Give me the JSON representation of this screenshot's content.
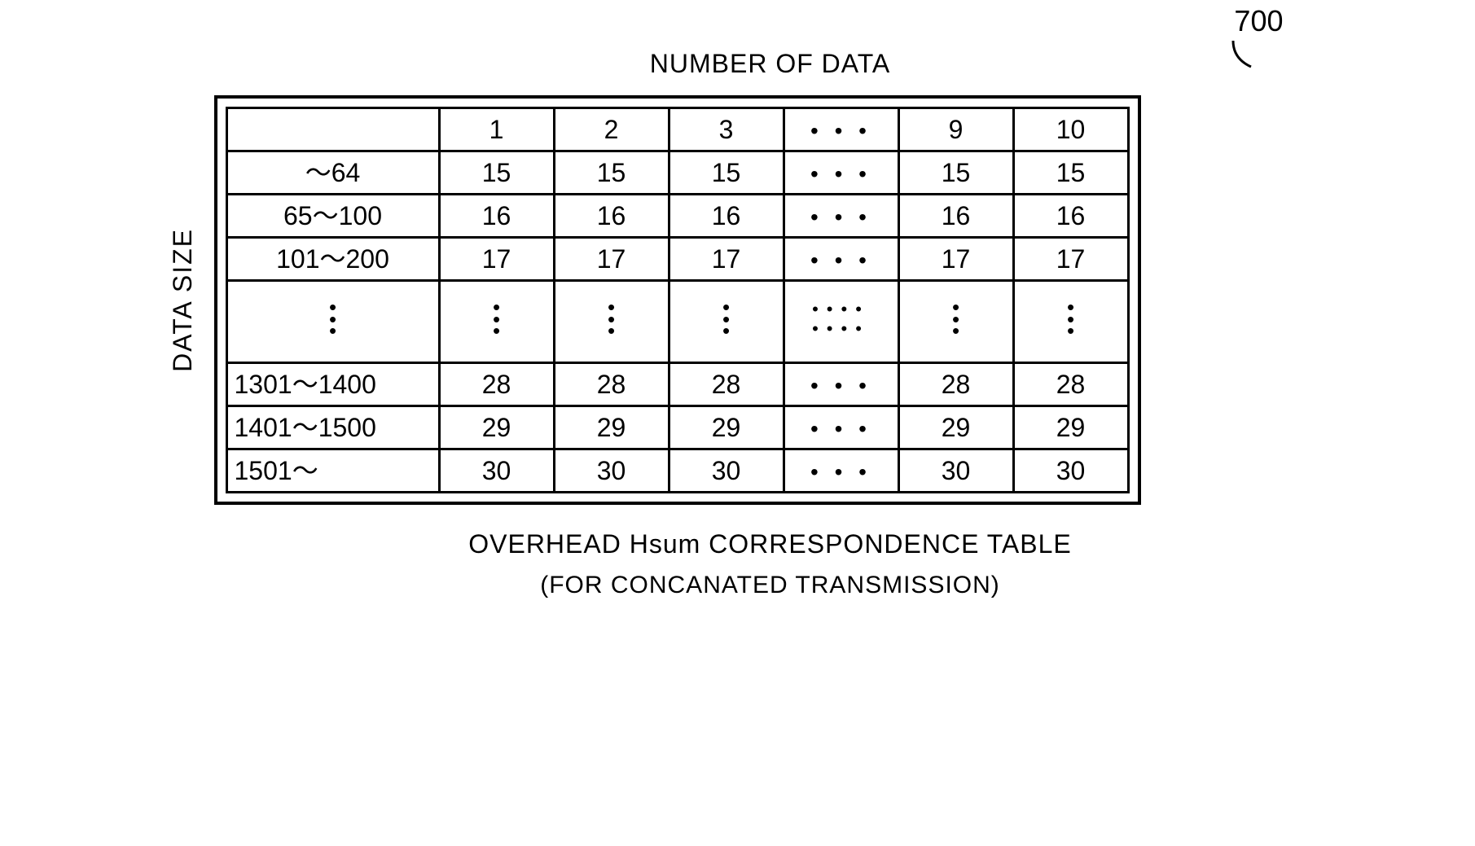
{
  "labels": {
    "top": "NUMBER OF DATA",
    "side": "DATA SIZE",
    "caption": "OVERHEAD Hsum CORRESPONDENCE TABLE",
    "subcaption": "(FOR CONCANATED TRANSMISSION)",
    "ref_number": "700"
  },
  "table": {
    "type": "table",
    "border_color": "#000000",
    "border_width_outer": 4,
    "border_width_inner": 3,
    "background_color": "#ffffff",
    "text_color": "#000000",
    "font_size": 32,
    "header_row": [
      "",
      "1",
      "2",
      "3",
      "· · ·",
      "9",
      "10"
    ],
    "rows": [
      {
        "label": "～64",
        "values": [
          "15",
          "15",
          "15",
          "· · ·",
          "15",
          "15"
        ]
      },
      {
        "label": "65～100",
        "values": [
          "16",
          "16",
          "16",
          "· · ·",
          "16",
          "16"
        ]
      },
      {
        "label": "101～200",
        "values": [
          "17",
          "17",
          "17",
          "· · ·",
          "17",
          "17"
        ]
      },
      {
        "label": "VDOTS",
        "values": [
          "VDOTS",
          "VDOTS",
          "VDOTS",
          "VDOTSWIDE",
          "VDOTS",
          "VDOTS"
        ],
        "is_ellipsis": true
      },
      {
        "label": "1301～1400",
        "values": [
          "28",
          "28",
          "28",
          "· · ·",
          "28",
          "28"
        ],
        "left_align": true
      },
      {
        "label": "1401～1500",
        "values": [
          "29",
          "29",
          "29",
          "· · ·",
          "29",
          "29"
        ],
        "left_align": true
      },
      {
        "label": "1501～",
        "values": [
          "30",
          "30",
          "30",
          "· · ·",
          "30",
          "30"
        ],
        "left_align": true
      }
    ]
  }
}
